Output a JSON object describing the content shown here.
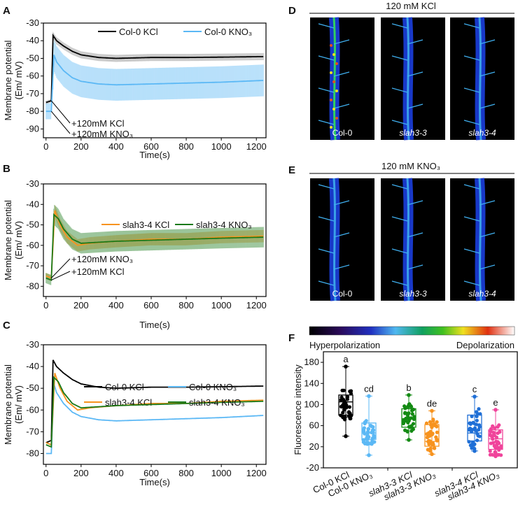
{
  "panels": {
    "A": "A",
    "B": "B",
    "C": "C",
    "D": "D",
    "E": "E",
    "F": "F"
  },
  "colors": {
    "col0_kcl": "#000000",
    "col0_kno3": "#5bb8f5",
    "slah34_kcl": "#f7931e",
    "slah34_kno3": "#1a7a1a"
  },
  "chart_data": [
    {
      "type": "line",
      "panel": "A",
      "xlabel": "Time(s)",
      "ylabel": "Membrane potential",
      "ylabel2": "(Em/ mV)",
      "xlim": [
        -15,
        1255
      ],
      "ylim": [
        -95,
        -30
      ],
      "xticks": [
        0,
        200,
        400,
        600,
        800,
        1000,
        1200
      ],
      "yticks": [
        -30,
        -40,
        -50,
        -60,
        -70,
        -80,
        -90
      ],
      "annotations": [
        "+120mM KCl",
        "+120mM KNO₃"
      ],
      "series": [
        {
          "name": "Col-0 KCl",
          "color": "#000000",
          "sd": 2,
          "x": [
            0,
            30,
            40,
            60,
            100,
            150,
            200,
            300,
            400,
            600,
            800,
            1000,
            1240
          ],
          "y": [
            -75,
            -74,
            -37,
            -40,
            -43,
            -46,
            -48,
            -49.5,
            -50,
            -49.5,
            -49.5,
            -49.3,
            -49
          ]
        },
        {
          "name": "Col-0 KNO₃",
          "color": "#5bb8f5",
          "sd": 9,
          "x": [
            0,
            30,
            45,
            60,
            100,
            150,
            200,
            300,
            400,
            600,
            800,
            1000,
            1240
          ],
          "y": [
            -80,
            -80,
            -48,
            -52,
            -57,
            -61,
            -63,
            -64.5,
            -65,
            -64.5,
            -64,
            -63.5,
            -62.5
          ]
        }
      ]
    },
    {
      "type": "line",
      "panel": "B",
      "xlabel": "Time(s)",
      "ylabel": "Membrane potential",
      "ylabel2": "(Em/ mV)",
      "xlim": [
        -15,
        1255
      ],
      "ylim": [
        -85,
        -30
      ],
      "xticks": [
        0,
        200,
        400,
        600,
        800,
        1000,
        1200
      ],
      "yticks": [
        -30,
        -40,
        -50,
        -60,
        -70,
        -80
      ],
      "annotations": [
        "+120mM KNO₃",
        "+120mM KCl"
      ],
      "series": [
        {
          "name": "slah3-4 KCl",
          "color": "#f7931e",
          "sd": 3,
          "x": [
            0,
            30,
            50,
            80,
            120,
            180,
            250,
            400,
            600,
            800,
            1000,
            1240
          ],
          "y": [
            -75,
            -76,
            -43,
            -50,
            -56,
            -60,
            -59,
            -58,
            -57,
            -57,
            -56,
            -55.5
          ]
        },
        {
          "name": "slah3-4 KNO₃",
          "color": "#1a7a1a",
          "sd": 5,
          "x": [
            0,
            30,
            45,
            70,
            100,
            150,
            200,
            300,
            400,
            600,
            800,
            1000,
            1240
          ],
          "y": [
            -76,
            -77,
            -45,
            -47,
            -52,
            -57,
            -59,
            -58.5,
            -58,
            -57.5,
            -57,
            -56.5,
            -56
          ]
        }
      ]
    },
    {
      "type": "line",
      "panel": "C",
      "xlabel": "Time(s)",
      "ylabel": "Membrane potential",
      "ylabel2": "(Em/ mV)",
      "xlim": [
        -15,
        1255
      ],
      "ylim": [
        -85,
        -30
      ],
      "xticks": [
        0,
        200,
        400,
        600,
        800,
        1000,
        1200
      ],
      "yticks": [
        -30,
        -40,
        -50,
        -60,
        -70,
        -80
      ],
      "annotations": [],
      "series": [
        {
          "name": "Col-0 KCl",
          "color": "#000000",
          "sd": 0,
          "x": [
            0,
            30,
            40,
            60,
            100,
            150,
            200,
            300,
            400,
            600,
            800,
            1000,
            1240
          ],
          "y": [
            -75,
            -74,
            -37,
            -40,
            -43,
            -46,
            -48,
            -49.5,
            -50,
            -49.5,
            -49.5,
            -49.3,
            -49
          ]
        },
        {
          "name": "Col-0 KNO₃",
          "color": "#5bb8f5",
          "sd": 0,
          "x": [
            0,
            30,
            45,
            60,
            100,
            150,
            200,
            300,
            400,
            600,
            800,
            1000,
            1240
          ],
          "y": [
            -80,
            -80,
            -48,
            -52,
            -57,
            -61,
            -63,
            -64.5,
            -65,
            -64.5,
            -64,
            -63.5,
            -62.5
          ]
        },
        {
          "name": "slah3-4 KCl",
          "color": "#f7931e",
          "sd": 0,
          "x": [
            0,
            30,
            50,
            80,
            120,
            180,
            250,
            400,
            600,
            800,
            1000,
            1240
          ],
          "y": [
            -75,
            -76,
            -43,
            -50,
            -56,
            -60,
            -59,
            -58,
            -57,
            -57,
            -56,
            -55.5
          ]
        },
        {
          "name": "slah3-4 KNO₃",
          "color": "#1a7a1a",
          "sd": 0,
          "x": [
            0,
            30,
            45,
            70,
            100,
            150,
            200,
            300,
            400,
            600,
            800,
            1000,
            1240
          ],
          "y": [
            -76,
            -77,
            -45,
            -47,
            -52,
            -57,
            -59,
            -58.5,
            -58,
            -57.5,
            -57,
            -56.5,
            -56
          ]
        }
      ]
    },
    {
      "type": "box",
      "panel": "F",
      "ylabel": "Fluorescence intensity",
      "ylim": [
        -20,
        200
      ],
      "yticks": [
        -20,
        20,
        60,
        100,
        140,
        180
      ],
      "groups": [
        {
          "name": "Col-0 KCl",
          "color": "#000000",
          "min": 40,
          "q1": 80,
          "median": 105,
          "q3": 118,
          "max": 172,
          "letter": "a"
        },
        {
          "name": "Col-0 KNO₃",
          "color": "#5bb8f5",
          "min": 4,
          "q1": 34,
          "median": 46,
          "q3": 65,
          "max": 116,
          "letter": "cd"
        },
        {
          "name": "slah3-3 KCl",
          "color": "#138a13",
          "min": 33,
          "q1": 57,
          "median": 73,
          "q3": 92,
          "max": 118,
          "letter": "b"
        },
        {
          "name": "slah3-3 KNO₃",
          "color": "#f7931e",
          "min": 6,
          "q1": 21,
          "median": 30,
          "q3": 62,
          "max": 88,
          "letter": "de"
        },
        {
          "name": "slah3-4 KCl",
          "color": "#1f6fd6",
          "min": 12,
          "q1": 31,
          "median": 46,
          "q3": 80,
          "max": 115,
          "letter": "c"
        },
        {
          "name": "slah3-4 KNO₃",
          "color": "#f0449b",
          "min": 2,
          "q1": 15,
          "median": 35,
          "q3": 52,
          "max": 90,
          "letter": "e"
        }
      ]
    }
  ],
  "images": {
    "D": {
      "title": "120 mM KCl",
      "labels": [
        "Col-0",
        "slah3-3",
        "slah3-4"
      ]
    },
    "E": {
      "title": "120 mM KNO₃",
      "labels": [
        "Col-0",
        "slah3-3",
        "slah3-4"
      ]
    },
    "colorbar": {
      "left": "Hyperpolarization",
      "right": "Depolarization"
    }
  }
}
